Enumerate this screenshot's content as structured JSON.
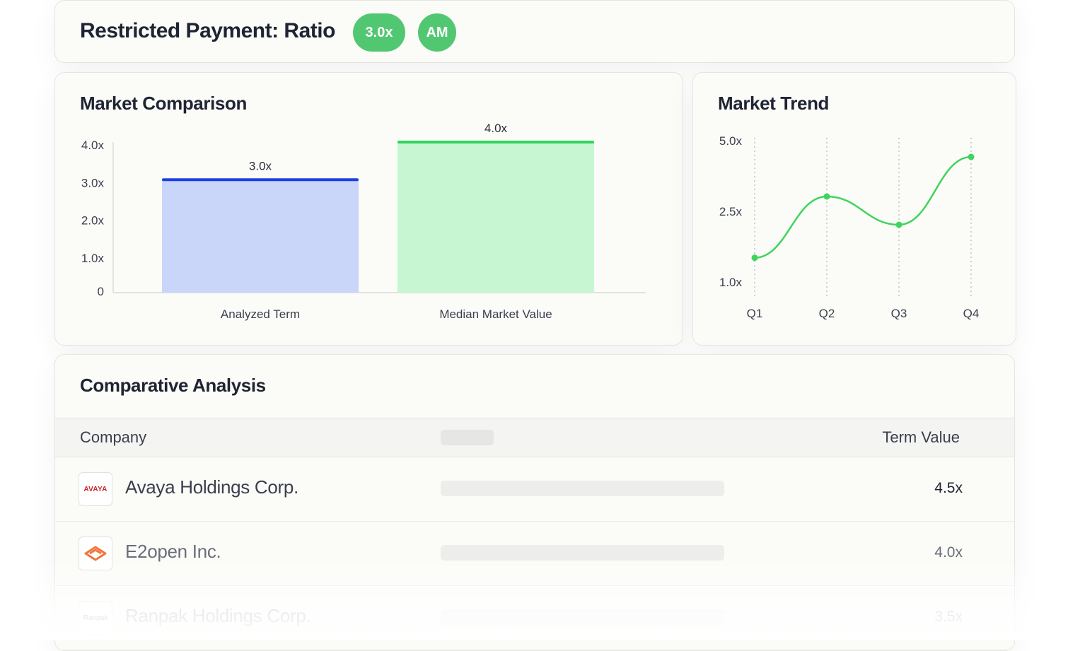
{
  "header": {
    "title": "Restricted Payment: Ratio",
    "ratio_badge": "3.0x",
    "user_initials": "AM"
  },
  "market_comparison": {
    "title": "Market Comparison",
    "chart_data": {
      "type": "bar",
      "categories": [
        "Analyzed Term",
        "Median Market Value"
      ],
      "values": [
        3.0,
        4.0
      ],
      "value_labels": [
        "3.0x",
        "4.0x"
      ],
      "y_ticks": [
        "0",
        "1.0x",
        "2.0x",
        "3.0x",
        "4.0x"
      ],
      "ylim": [
        0,
        4.0
      ],
      "colors": {
        "bar_fills": [
          "#c9d6fa",
          "#c6f7d2"
        ],
        "bar_tops": [
          "#1d3fe0",
          "#31d35c"
        ]
      }
    }
  },
  "market_trend": {
    "title": "Market Trend",
    "chart_data": {
      "type": "line",
      "categories": [
        "Q1",
        "Q2",
        "Q3",
        "Q4"
      ],
      "values": [
        1.5,
        3.0,
        2.2,
        4.4
      ],
      "y_ticks": [
        "1.0x",
        "2.5x",
        "5.0x"
      ],
      "color": "#3fd45e"
    }
  },
  "comparative_analysis": {
    "title": "Comparative Analysis",
    "columns": {
      "company": "Company",
      "term_value": "Term Value"
    },
    "rows": [
      {
        "logo_text": "AVAYA",
        "logo_color": "#cc2229",
        "company": "Avaya Holdings Corp.",
        "term_value": "4.5x"
      },
      {
        "logo_icon": "e2open-chevron-icon",
        "logo_color": "#f0763a",
        "company": "E2open Inc.",
        "term_value": "4.0x"
      },
      {
        "logo_text": "Ranpak",
        "logo_color": "#777777",
        "company": "Ranpak Holdings Corp.",
        "term_value": "3.5x"
      }
    ]
  }
}
